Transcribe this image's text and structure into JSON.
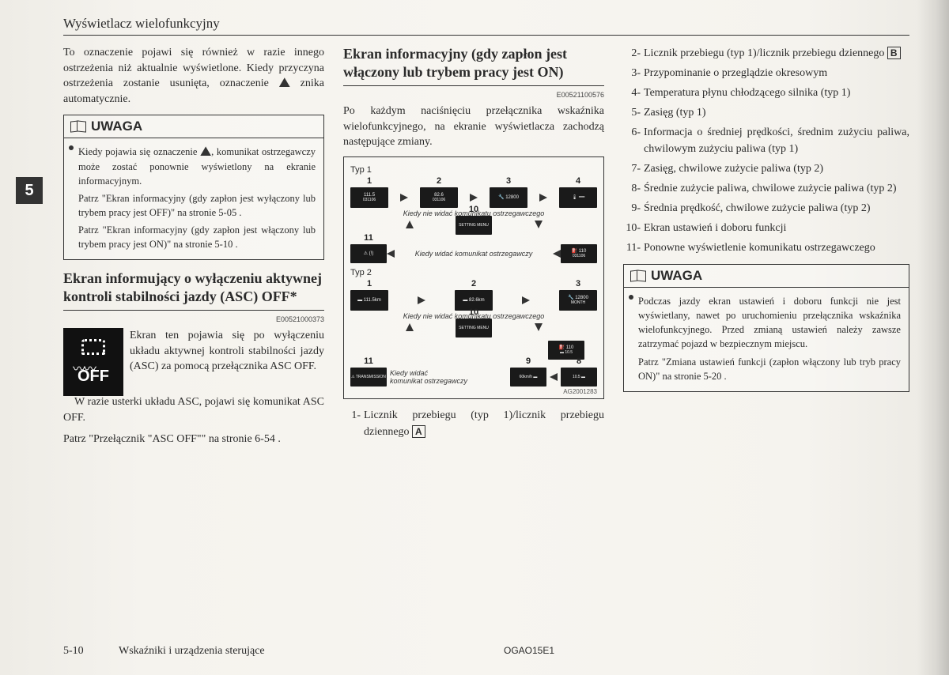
{
  "header": {
    "title": "Wyświetlacz wielofunkcyjny"
  },
  "sideTab": "5",
  "col1": {
    "intro": "To oznaczenie pojawi się również w razie innego ostrzeżenia niż aktualnie wyświetlone. Kiedy przyczyna ostrzeżenia zostanie usunięta, oznaczenie ",
    "introAfter": " znika automatycznie.",
    "noteLabel": "UWAGA",
    "noteP1a": "Kiedy pojawia się oznaczenie ",
    "noteP1b": ", komunikat ostrzegawczy może zostać ponownie wyświetlony na ekranie informacyjnym.",
    "noteP2": "Patrz \"Ekran informacyjny (gdy zapłon jest wyłączony lub trybem pracy jest OFF)\" na stronie 5-05 .",
    "noteP3": "Patrz \"Ekran informacyjny (gdy zapłon jest włączony lub trybem pracy jest ON)\" na stronie 5-10 .",
    "h2": "Ekran informujący o wyłączeniu aktywnej kontroli stabilności jazdy (ASC) OFF*",
    "code": "E00521000373",
    "ascText": "Ekran ten pojawia się po wyłączeniu układu aktywnej kontroli stabilności jazdy (ASC) za pomocą przełącznika ASC OFF.",
    "ascText2": "W razie usterki układu ASC, pojawi się komunikat ASC OFF.",
    "ascText3": "Patrz \"Przełącznik \"ASC OFF\"\" na stronie 6-54 .",
    "ascOff": "OFF"
  },
  "col2": {
    "h2": "Ekran informacyjny (gdy zapłon jest włączony lub trybem pracy jest ON)",
    "code": "E00521100576",
    "intro": "Po każdym naciśnięciu przełącznika wskaźnika wielofunkcyjnego, na ekranie wyświetlacza zachodzą następujące zmiany.",
    "typ1": "Typ 1",
    "typ2": "Typ 2",
    "cap1": "Kiedy nie widać komunikatu ostrzegawczego",
    "cap2": "Kiedy widać komunikat ostrzegawczy",
    "cap3": "Kiedy nie widać komunikatu ostrzegawczego",
    "cap4": "Kiedy widać\nkomunikat ostrzegawczy",
    "diagCode": "AG2001283",
    "screens": {
      "typ1": [
        "111.5",
        "82.6",
        "12800",
        "—"
      ],
      "typ2": [
        "111.5km",
        "82.6km",
        "12800"
      ]
    },
    "listStart": "1-",
    "item1a": "Licznik przebiegu (typ 1)/licznik przebiegu dziennego ",
    "item1box": "A"
  },
  "col3": {
    "items": [
      {
        "n": "2-",
        "t": "Licznik przebiegu (typ 1)/licznik przebiegu dziennego ",
        "box": "B"
      },
      {
        "n": "3-",
        "t": "Przypominanie o przeglądzie okresowym"
      },
      {
        "n": "4-",
        "t": "Temperatura płynu chłodzącego silnika (typ 1)"
      },
      {
        "n": "5-",
        "t": "Zasięg (typ 1)"
      },
      {
        "n": "6-",
        "t": "Informacja o średniej prędkości, średnim zużyciu paliwa, chwilowym zużyciu paliwa (typ 1)"
      },
      {
        "n": "7-",
        "t": "Zasięg, chwilowe zużycie paliwa (typ 2)"
      },
      {
        "n": "8-",
        "t": "Średnie zużycie paliwa, chwilowe zużycie paliwa (typ 2)"
      },
      {
        "n": "9-",
        "t": "Średnia prędkość, chwilowe zużycie paliwa (typ 2)"
      },
      {
        "n": "10-",
        "t": "Ekran ustawień i doboru funkcji"
      },
      {
        "n": "11-",
        "t": "Ponowne wyświetlenie komunikatu ostrzegawczego"
      }
    ],
    "noteLabel": "UWAGA",
    "noteP1": "Podczas jazdy ekran ustawień i doboru funkcji nie jest wyświetlany, nawet po uruchomieniu przełącznika wskaźnika wielofunkcyjnego. Przed zmianą ustawień należy zawsze zatrzymać pojazd w bezpiecznym miejscu.",
    "noteP2": "Patrz \"Zmiana ustawień funkcji (zapłon włączony lub tryb pracy ON)\" na stronie 5-20 ."
  },
  "footer": {
    "page": "5-10",
    "title": "Wskaźniki i urządzenia sterujące",
    "code": "OGAO15E1"
  }
}
